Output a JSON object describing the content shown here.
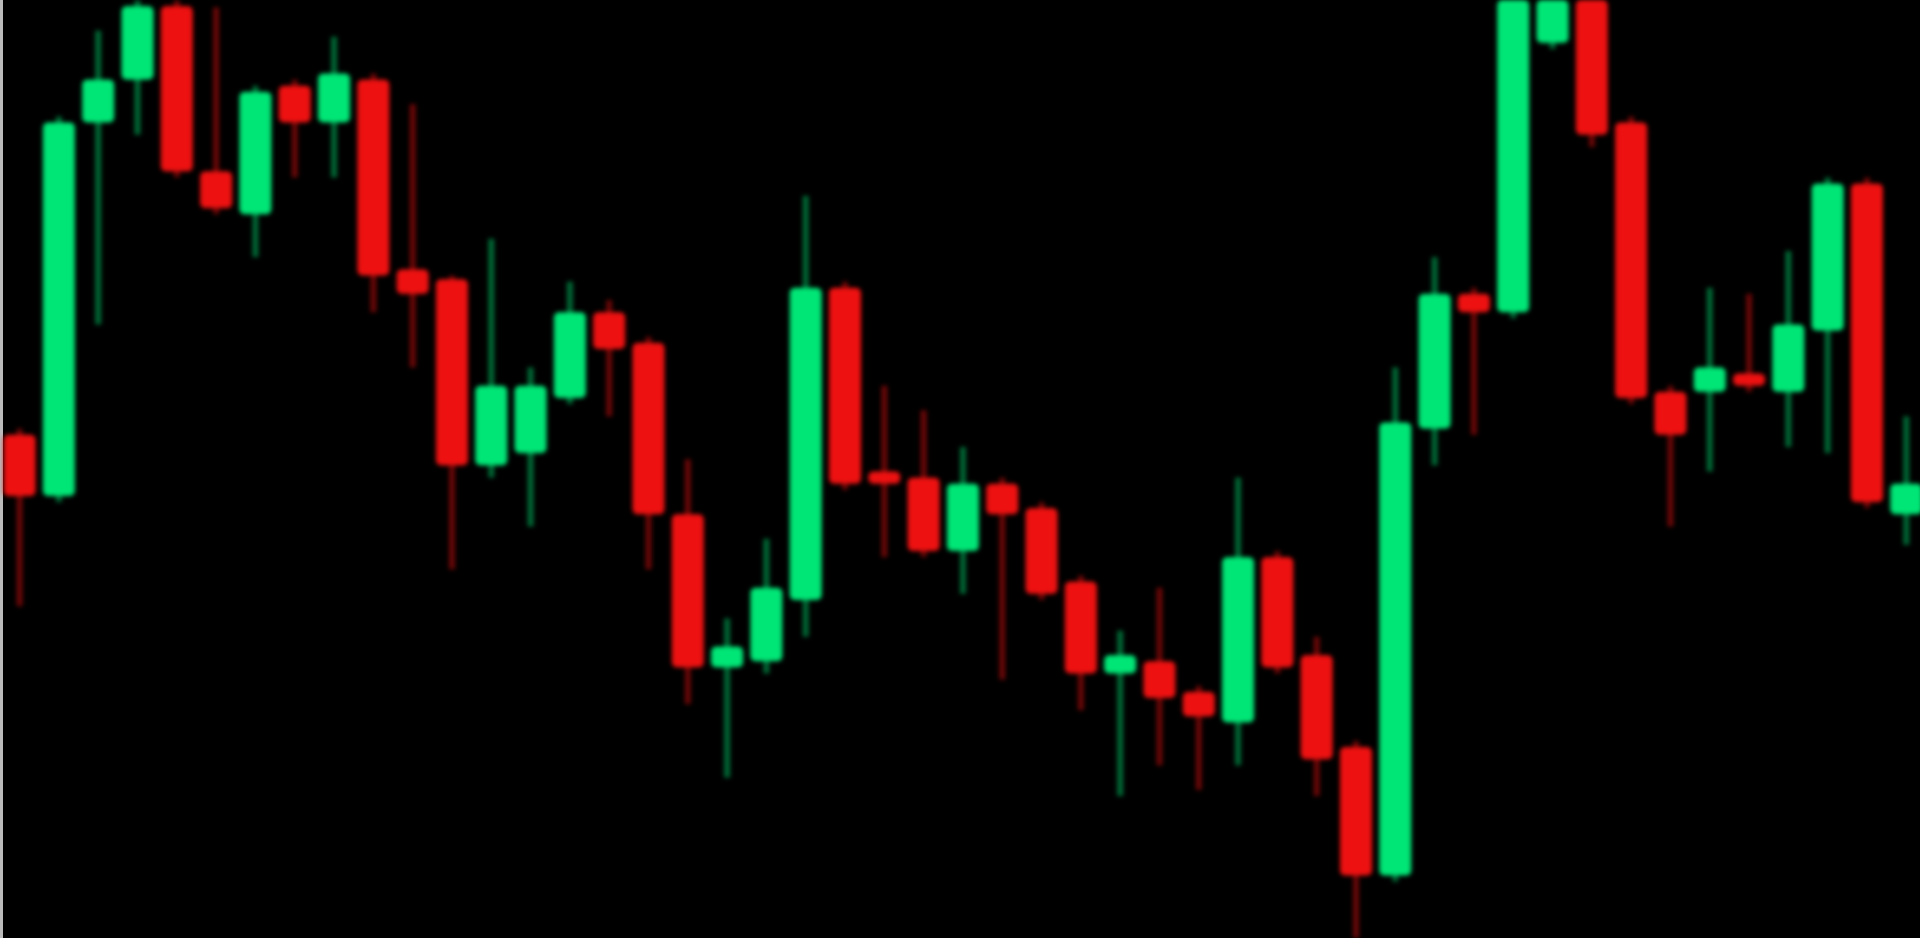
{
  "chart_data": {
    "type": "candlestick",
    "open": [
      411,
      361,
      666,
      701,
      761,
      626,
      591,
      696,
      666,
      701,
      546,
      538,
      386,
      396,
      441,
      511,
      486,
      346,
      221,
      226,
      276,
      531,
      381,
      376,
      316,
      371,
      351,
      291,
      216,
      226,
      201,
      176,
      311,
      231,
      156,
      51,
      416,
      526,
      511,
      731,
      766,
      666,
      446,
      446,
      461,
      446,
      496,
      616,
      346
    ],
    "high": [
      416,
      671,
      741,
      766,
      766,
      760,
      696,
      701,
      736,
      706,
      681,
      541,
      571,
      466,
      536,
      521,
      491,
      391,
      261,
      326,
      606,
      536,
      451,
      431,
      401,
      376,
      356,
      296,
      251,
      286,
      206,
      376,
      316,
      246,
      161,
      466,
      556,
      531,
      766,
      766,
      766,
      671,
      451,
      531,
      526,
      561,
      621,
      621,
      426
    ],
    "low": [
      271,
      356,
      501,
      656,
      621,
      591,
      556,
      621,
      621,
      511,
      466,
      301,
      376,
      336,
      436,
      426,
      301,
      191,
      131,
      216,
      246,
      366,
      311,
      311,
      281,
      211,
      276,
      186,
      116,
      141,
      121,
      141,
      216,
      116,
      0,
      46,
      386,
      411,
      506,
      726,
      646,
      436,
      336,
      381,
      446,
      401,
      396,
      351,
      321
    ],
    "close": [
      361,
      666,
      701,
      761,
      626,
      596,
      691,
      666,
      706,
      541,
      526,
      386,
      451,
      451,
      511,
      481,
      346,
      221,
      238,
      286,
      531,
      371,
      371,
      316,
      371,
      346,
      281,
      216,
      231,
      196,
      181,
      311,
      221,
      146,
      51,
      421,
      526,
      511,
      766,
      766,
      656,
      441,
      411,
      466,
      451,
      501,
      616,
      356,
      371
    ],
    "ylim": [
      0,
      766
    ],
    "up_color": "#00e676",
    "down_color": "#ee1111"
  }
}
